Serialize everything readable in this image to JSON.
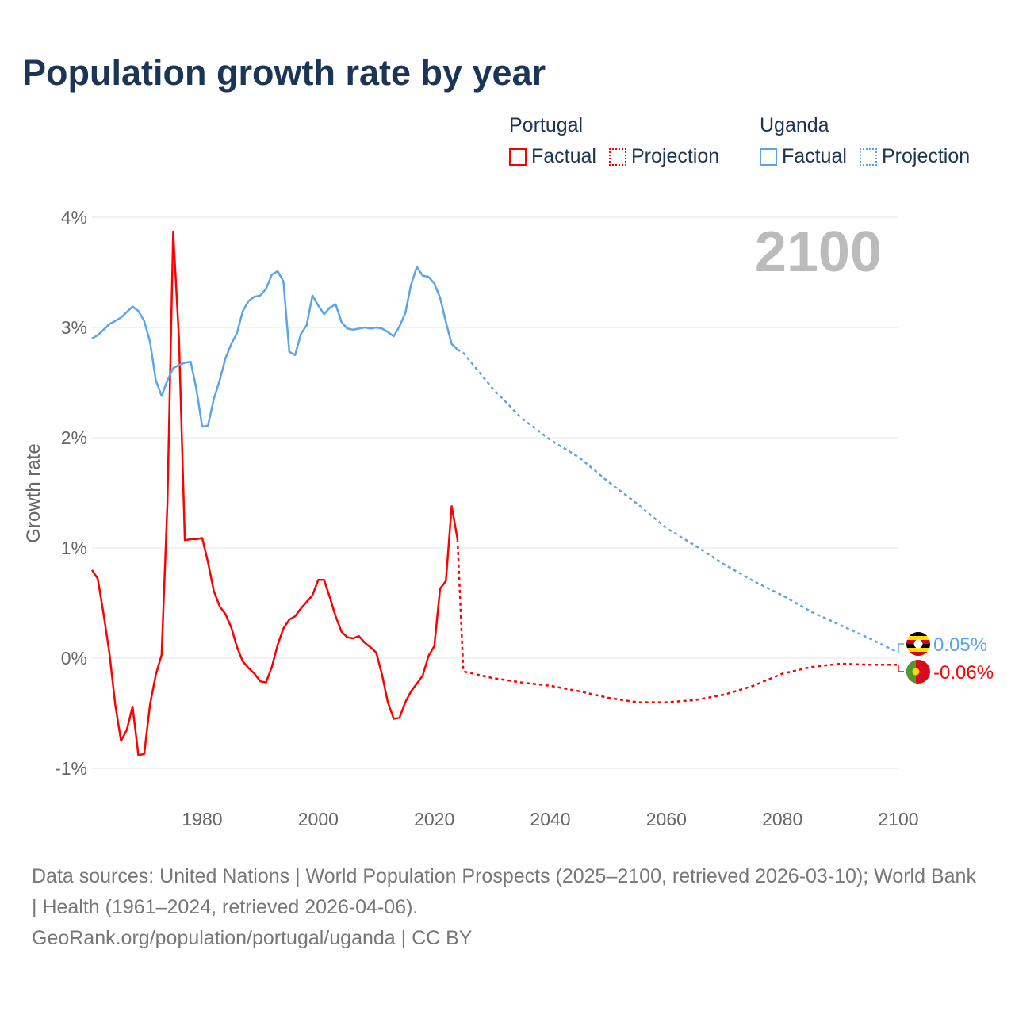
{
  "title": "Population growth rate by year",
  "legend": [
    {
      "country": "Portugal",
      "factual": "Factual",
      "projection": "Projection",
      "color": "#ff0000"
    },
    {
      "country": "Uganda",
      "factual": "Factual",
      "projection": "Projection",
      "color": "#5aa5ea"
    }
  ],
  "footer": {
    "sources": "Data sources: United Nations | World Population Prospects (2025–2100, retrieved 2026-03-10); World Bank | Health (1961–2024, retrieved 2026-04-06).",
    "credit": "GeoRank.org/population/portugal/uganda | CC BY"
  },
  "chart_data": {
    "type": "line",
    "title": "Population growth rate by year",
    "xlabel": "",
    "ylabel": "Growth rate",
    "xlim": [
      1961,
      2100
    ],
    "ylim": [
      -1,
      4
    ],
    "year_label": "2100",
    "x_ticks": [
      1980,
      2000,
      2020,
      2040,
      2060,
      2080,
      2100
    ],
    "y_ticks": [
      {
        "v": 4,
        "label": "4%"
      },
      {
        "v": 3,
        "label": "3%"
      },
      {
        "v": 2,
        "label": "2%"
      },
      {
        "v": 1,
        "label": "1%"
      },
      {
        "v": 0,
        "label": "0%"
      },
      {
        "v": -1,
        "label": "-1%"
      }
    ],
    "grid": true,
    "series": [
      {
        "name": "Portugal",
        "color": "#ff0000",
        "end_label": "-0.06%",
        "factual": {
          "start": 1961,
          "values": [
            0.8,
            0.72,
            0.4,
            0.05,
            -0.42,
            -0.75,
            -0.65,
            -0.44,
            -0.88,
            -0.87,
            -0.42,
            -0.15,
            0.03,
            1.4,
            3.87,
            2.9,
            1.07,
            1.08,
            1.08,
            1.09,
            0.87,
            0.61,
            0.47,
            0.4,
            0.28,
            0.1,
            -0.03,
            -0.09,
            -0.14,
            -0.21,
            -0.22,
            -0.08,
            0.12,
            0.27,
            0.35,
            0.38,
            0.45,
            0.51,
            0.57,
            0.71,
            0.71,
            0.55,
            0.38,
            0.24,
            0.19,
            0.18,
            0.2,
            0.14,
            0.1,
            0.05,
            -0.15,
            -0.4,
            -0.55,
            -0.54,
            -0.4,
            -0.3,
            -0.23,
            -0.16,
            0.02,
            0.11,
            0.63,
            0.7,
            1.38,
            1.08
          ]
        },
        "projection": {
          "years": [
            2024,
            2025,
            2030,
            2035,
            2040,
            2045,
            2050,
            2055,
            2060,
            2065,
            2070,
            2075,
            2080,
            2085,
            2090,
            2095,
            2100
          ],
          "values": [
            1.08,
            -0.12,
            -0.18,
            -0.22,
            -0.25,
            -0.3,
            -0.36,
            -0.4,
            -0.4,
            -0.38,
            -0.33,
            -0.25,
            -0.14,
            -0.08,
            -0.05,
            -0.06,
            -0.06
          ]
        }
      },
      {
        "name": "Uganda",
        "color": "#5aa5ea",
        "end_label": "0.05%",
        "factual": {
          "start": 1961,
          "values": [
            2.9,
            2.93,
            2.98,
            3.03,
            3.06,
            3.09,
            3.14,
            3.19,
            3.15,
            3.06,
            2.87,
            2.52,
            2.38,
            2.52,
            2.63,
            2.66,
            2.68,
            2.69,
            2.44,
            2.1,
            2.11,
            2.35,
            2.52,
            2.72,
            2.85,
            2.95,
            3.15,
            3.24,
            3.28,
            3.29,
            3.35,
            3.48,
            3.51,
            3.42,
            2.78,
            2.75,
            2.94,
            3.02,
            3.29,
            3.2,
            3.12,
            3.18,
            3.21,
            3.05,
            2.99,
            2.98,
            2.99,
            3.0,
            2.99,
            3.0,
            2.99,
            2.96,
            2.92,
            3.01,
            3.13,
            3.39,
            3.55,
            3.47,
            3.46,
            3.4,
            3.27,
            3.05,
            2.85,
            2.8
          ]
        },
        "projection": {
          "years": [
            2024,
            2025,
            2030,
            2035,
            2040,
            2045,
            2050,
            2055,
            2060,
            2065,
            2070,
            2075,
            2080,
            2085,
            2090,
            2095,
            2100
          ],
          "values": [
            2.8,
            2.77,
            2.45,
            2.18,
            1.98,
            1.82,
            1.6,
            1.4,
            1.18,
            1.02,
            0.85,
            0.7,
            0.57,
            0.42,
            0.3,
            0.18,
            0.05
          ]
        }
      }
    ]
  }
}
